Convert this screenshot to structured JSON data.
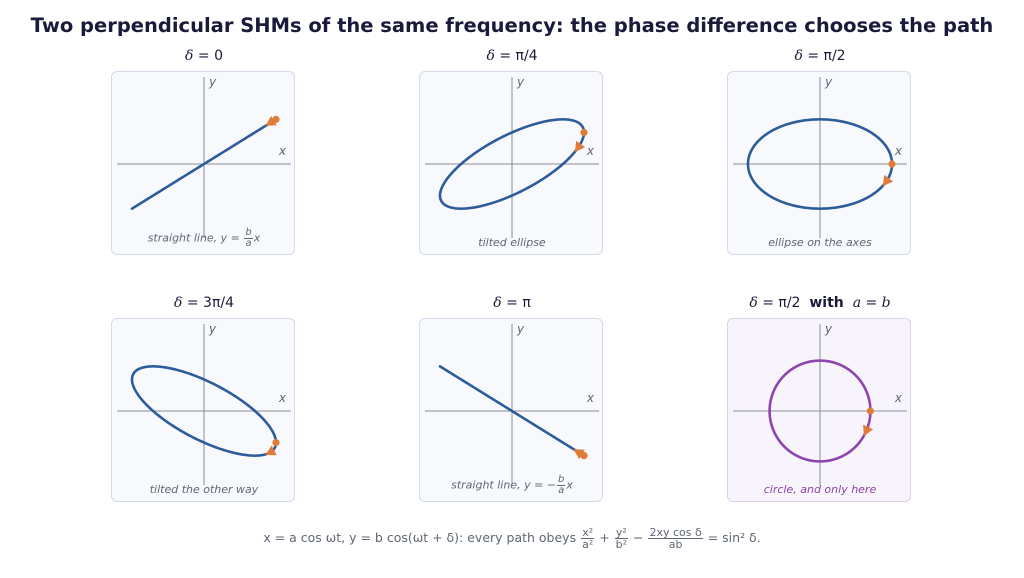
{
  "title": "Two perpendicular SHMs of the same frequency: the phase difference chooses the path",
  "axes": {
    "x_label": "x",
    "y_label": "y"
  },
  "colors": {
    "path": "#2e5c9a",
    "circle": "#8e44ad",
    "marker": "#e07b39",
    "axis": "#8a8f99"
  },
  "panels": [
    {
      "id": "p1",
      "title_var": "δ",
      "title_val": "= 0",
      "a": 1.0,
      "b": 0.62,
      "delta_over_pi": 0,
      "caption_text": "straight line, y = ",
      "caption_sign": "",
      "caption_num": "b",
      "caption_den": "a",
      "caption_tail": "x"
    },
    {
      "id": "p2",
      "title_var": "δ",
      "title_val": "= π/4",
      "a": 1.0,
      "b": 0.62,
      "delta_over_pi": 0.25,
      "caption_text": "tilted ellipse"
    },
    {
      "id": "p3",
      "title_var": "δ",
      "title_val": "= π/2",
      "a": 1.0,
      "b": 0.62,
      "delta_over_pi": 0.5,
      "caption_text": "ellipse on the axes"
    },
    {
      "id": "p4",
      "title_var": "δ",
      "title_val": "= 3π/4",
      "a": 1.0,
      "b": 0.62,
      "delta_over_pi": 0.75,
      "caption_text": "tilted the other way"
    },
    {
      "id": "p5",
      "title_var": "δ",
      "title_val": "= π",
      "a": 1.0,
      "b": 0.62,
      "delta_over_pi": 1,
      "caption_text": "straight line, y = ",
      "caption_sign": "−",
      "caption_num": "b",
      "caption_den": "a",
      "caption_tail": "x"
    },
    {
      "id": "p6",
      "title_var": "δ",
      "title_val": "= π/2",
      "title_with": "with",
      "title_eq": "a = b",
      "a": 0.7,
      "b": 0.7,
      "delta_over_pi": 0.5,
      "caption_text": "circle, and only here",
      "special": true
    }
  ],
  "footer": {
    "part1": "x = a cos ωt, y = b cos(ωt + δ): every path obeys ",
    "f1_num": "x²",
    "f1_den": "a²",
    "plus": " + ",
    "f2_num": "y²",
    "f2_den": "b²",
    "minus": " − ",
    "f3_num": "2xy cos δ",
    "f3_den": "ab",
    "equals": " = sin² δ."
  }
}
